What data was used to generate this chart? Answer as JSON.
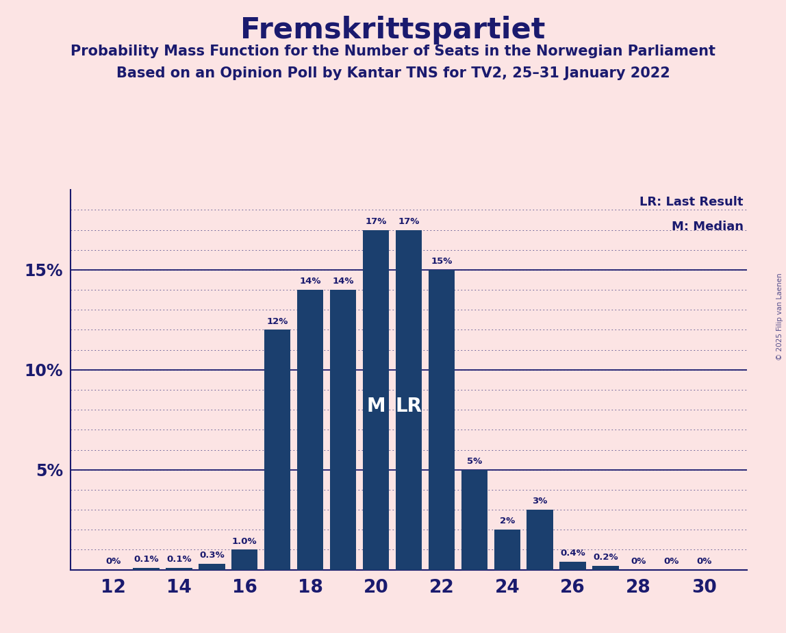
{
  "title": "Fremskrittspartiet",
  "subtitle1": "Probability Mass Function for the Number of Seats in the Norwegian Parliament",
  "subtitle2": "Based on an Opinion Poll by Kantar TNS for TV2, 25–31 January 2022",
  "copyright": "© 2025 Filip van Laenen",
  "background_color": "#fce4e4",
  "bar_color": "#1b3f6e",
  "title_color": "#1a1a6e",
  "label_color": "#1a1a6e",
  "seats": [
    12,
    13,
    14,
    15,
    16,
    17,
    18,
    19,
    20,
    21,
    22,
    23,
    24,
    25,
    26,
    27,
    28,
    29,
    30
  ],
  "probabilities": [
    0.0,
    0.1,
    0.1,
    0.3,
    1.0,
    12.0,
    14.0,
    14.0,
    17.0,
    17.0,
    15.0,
    5.0,
    2.0,
    3.0,
    0.4,
    0.2,
    0.0,
    0.0,
    0.0
  ],
  "bar_labels": [
    "0%",
    "0.1%",
    "0.1%",
    "0.3%",
    "1.0%",
    "12%",
    "14%",
    "14%",
    "17%",
    "17%",
    "15%",
    "5%",
    "2%",
    "3%",
    "0.4%",
    "0.2%",
    "0%",
    "0%",
    "0%"
  ],
  "median_seat": 20,
  "last_result_seat": 21,
  "ylim": [
    0,
    19.0
  ],
  "xticks": [
    12,
    14,
    16,
    18,
    20,
    22,
    24,
    26,
    28,
    30
  ],
  "legend_lr": "LR: Last Result",
  "legend_m": "M: Median"
}
